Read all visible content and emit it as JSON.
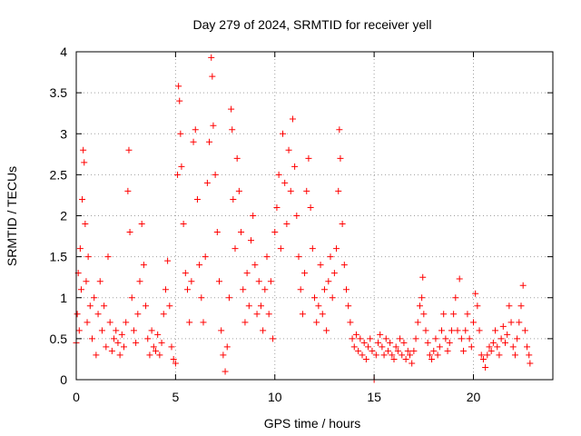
{
  "chart_data": {
    "type": "scatter",
    "title": "Day 279 of 2024, SRMTID for receiver yell",
    "xlabel": "GPS time / hours",
    "ylabel": "SRMTID / TECUs",
    "xlim": [
      0,
      24
    ],
    "ylim": [
      0,
      4
    ],
    "x_ticks": [
      0,
      5,
      10,
      15,
      20
    ],
    "x_tick_labels": [
      "0",
      "5",
      "10",
      "15",
      "20"
    ],
    "y_ticks": [
      0,
      0.5,
      1,
      1.5,
      2,
      2.5,
      3,
      3.5,
      4
    ],
    "y_tick_labels": [
      "0",
      "0.5",
      "1",
      "1.5",
      "2",
      "2.5",
      "3",
      "3.5",
      "4"
    ],
    "grid": true,
    "marker": "+",
    "series": [
      {
        "name": "SRMTID",
        "color": "#ff0000",
        "points": [
          [
            0.0,
            0.45
          ],
          [
            0.05,
            0.8
          ],
          [
            0.1,
            1.3
          ],
          [
            0.15,
            0.6
          ],
          [
            0.2,
            1.6
          ],
          [
            0.25,
            1.1
          ],
          [
            0.3,
            2.2
          ],
          [
            0.35,
            2.8
          ],
          [
            0.4,
            2.65
          ],
          [
            0.45,
            1.9
          ],
          [
            0.5,
            1.2
          ],
          [
            0.55,
            0.7
          ],
          [
            0.6,
            1.5
          ],
          [
            0.7,
            0.9
          ],
          [
            0.8,
            0.5
          ],
          [
            0.9,
            1.0
          ],
          [
            1.0,
            0.3
          ],
          [
            1.1,
            0.8
          ],
          [
            1.2,
            1.2
          ],
          [
            1.3,
            0.6
          ],
          [
            1.4,
            0.9
          ],
          [
            1.5,
            0.4
          ],
          [
            1.6,
            1.5
          ],
          [
            1.7,
            0.7
          ],
          [
            1.8,
            0.35
          ],
          [
            1.9,
            0.5
          ],
          [
            2.0,
            0.6
          ],
          [
            2.1,
            0.45
          ],
          [
            2.2,
            0.3
          ],
          [
            2.3,
            0.55
          ],
          [
            2.4,
            0.4
          ],
          [
            2.5,
            0.7
          ],
          [
            2.6,
            2.3
          ],
          [
            2.65,
            2.8
          ],
          [
            2.7,
            1.8
          ],
          [
            2.8,
            1.0
          ],
          [
            2.9,
            0.6
          ],
          [
            3.0,
            0.45
          ],
          [
            3.1,
            0.8
          ],
          [
            3.2,
            1.2
          ],
          [
            3.3,
            1.9
          ],
          [
            3.4,
            1.4
          ],
          [
            3.5,
            0.9
          ],
          [
            3.6,
            0.5
          ],
          [
            3.7,
            0.3
          ],
          [
            3.8,
            0.6
          ],
          [
            3.9,
            0.4
          ],
          [
            4.0,
            0.35
          ],
          [
            4.1,
            0.55
          ],
          [
            4.2,
            0.3
          ],
          [
            4.3,
            0.45
          ],
          [
            4.4,
            0.8
          ],
          [
            4.5,
            1.1
          ],
          [
            4.6,
            1.45
          ],
          [
            4.7,
            0.9
          ],
          [
            4.8,
            0.4
          ],
          [
            4.9,
            0.25
          ],
          [
            5.0,
            0.2
          ],
          [
            5.1,
            2.5
          ],
          [
            5.15,
            3.58
          ],
          [
            5.2,
            3.4
          ],
          [
            5.25,
            3.0
          ],
          [
            5.3,
            2.6
          ],
          [
            5.4,
            1.9
          ],
          [
            5.5,
            1.3
          ],
          [
            5.6,
            1.1
          ],
          [
            5.7,
            0.7
          ],
          [
            5.8,
            1.2
          ],
          [
            5.9,
            2.9
          ],
          [
            6.0,
            3.05
          ],
          [
            6.1,
            2.2
          ],
          [
            6.2,
            1.4
          ],
          [
            6.3,
            1.0
          ],
          [
            6.4,
            0.7
          ],
          [
            6.5,
            1.5
          ],
          [
            6.6,
            2.4
          ],
          [
            6.7,
            2.9
          ],
          [
            6.8,
            3.93
          ],
          [
            6.85,
            3.7
          ],
          [
            6.9,
            3.1
          ],
          [
            7.0,
            2.5
          ],
          [
            7.1,
            1.8
          ],
          [
            7.2,
            1.2
          ],
          [
            7.3,
            0.6
          ],
          [
            7.4,
            0.3
          ],
          [
            7.5,
            0.1
          ],
          [
            7.6,
            0.4
          ],
          [
            7.7,
            1.0
          ],
          [
            7.8,
            3.3
          ],
          [
            7.85,
            3.05
          ],
          [
            7.9,
            2.2
          ],
          [
            8.0,
            1.6
          ],
          [
            8.1,
            2.7
          ],
          [
            8.2,
            2.3
          ],
          [
            8.3,
            1.8
          ],
          [
            8.4,
            1.1
          ],
          [
            8.5,
            0.7
          ],
          [
            8.6,
            1.3
          ],
          [
            8.7,
            0.9
          ],
          [
            8.8,
            1.7
          ],
          [
            8.9,
            2.0
          ],
          [
            9.0,
            1.4
          ],
          [
            9.1,
            0.8
          ],
          [
            9.2,
            1.2
          ],
          [
            9.3,
            0.9
          ],
          [
            9.4,
            0.6
          ],
          [
            9.5,
            1.1
          ],
          [
            9.6,
            1.5
          ],
          [
            9.7,
            0.8
          ],
          [
            9.8,
            1.2
          ],
          [
            9.9,
            0.5
          ],
          [
            10.0,
            1.8
          ],
          [
            10.1,
            2.1
          ],
          [
            10.2,
            2.5
          ],
          [
            10.3,
            1.6
          ],
          [
            10.4,
            3.0
          ],
          [
            10.5,
            2.4
          ],
          [
            10.6,
            1.9
          ],
          [
            10.7,
            2.8
          ],
          [
            10.8,
            2.3
          ],
          [
            10.9,
            3.18
          ],
          [
            11.0,
            2.6
          ],
          [
            11.1,
            2.0
          ],
          [
            11.2,
            1.5
          ],
          [
            11.3,
            1.1
          ],
          [
            11.4,
            0.8
          ],
          [
            11.5,
            1.3
          ],
          [
            11.6,
            2.3
          ],
          [
            11.7,
            2.7
          ],
          [
            11.8,
            2.1
          ],
          [
            11.9,
            1.6
          ],
          [
            12.0,
            1.0
          ],
          [
            12.1,
            0.7
          ],
          [
            12.2,
            0.9
          ],
          [
            12.3,
            1.4
          ],
          [
            12.4,
            0.8
          ],
          [
            12.5,
            1.1
          ],
          [
            12.6,
            0.6
          ],
          [
            12.7,
            1.2
          ],
          [
            12.8,
            1.5
          ],
          [
            12.9,
            1.0
          ],
          [
            13.0,
            1.3
          ],
          [
            13.1,
            1.6
          ],
          [
            13.2,
            2.3
          ],
          [
            13.25,
            3.05
          ],
          [
            13.3,
            2.7
          ],
          [
            13.4,
            1.9
          ],
          [
            13.5,
            1.4
          ],
          [
            13.6,
            1.1
          ],
          [
            13.7,
            0.9
          ],
          [
            13.8,
            0.7
          ],
          [
            13.9,
            0.5
          ],
          [
            14.0,
            0.4
          ],
          [
            14.1,
            0.55
          ],
          [
            14.2,
            0.35
          ],
          [
            14.3,
            0.5
          ],
          [
            14.4,
            0.3
          ],
          [
            14.5,
            0.45
          ],
          [
            14.6,
            0.25
          ],
          [
            14.7,
            0.4
          ],
          [
            14.8,
            0.5
          ],
          [
            14.9,
            0.35
          ],
          [
            15.0,
            0.0
          ],
          [
            15.1,
            0.3
          ],
          [
            15.2,
            0.45
          ],
          [
            15.3,
            0.55
          ],
          [
            15.4,
            0.4
          ],
          [
            15.5,
            0.3
          ],
          [
            15.6,
            0.5
          ],
          [
            15.7,
            0.35
          ],
          [
            15.8,
            0.45
          ],
          [
            15.9,
            0.3
          ],
          [
            16.0,
            0.25
          ],
          [
            16.1,
            0.4
          ],
          [
            16.2,
            0.35
          ],
          [
            16.3,
            0.5
          ],
          [
            16.4,
            0.3
          ],
          [
            16.5,
            0.45
          ],
          [
            16.6,
            0.25
          ],
          [
            16.7,
            0.35
          ],
          [
            16.8,
            0.3
          ],
          [
            16.9,
            0.2
          ],
          [
            17.0,
            0.35
          ],
          [
            17.1,
            0.5
          ],
          [
            17.2,
            0.7
          ],
          [
            17.3,
            0.9
          ],
          [
            17.4,
            1.0
          ],
          [
            17.45,
            1.25
          ],
          [
            17.5,
            0.8
          ],
          [
            17.6,
            0.6
          ],
          [
            17.7,
            0.45
          ],
          [
            17.8,
            0.3
          ],
          [
            17.9,
            0.25
          ],
          [
            18.0,
            0.35
          ],
          [
            18.1,
            0.5
          ],
          [
            18.2,
            0.3
          ],
          [
            18.3,
            0.4
          ],
          [
            18.4,
            0.6
          ],
          [
            18.5,
            0.8
          ],
          [
            18.6,
            0.5
          ],
          [
            18.7,
            0.35
          ],
          [
            18.8,
            0.45
          ],
          [
            18.9,
            0.6
          ],
          [
            19.0,
            0.8
          ],
          [
            19.1,
            1.0
          ],
          [
            19.2,
            0.6
          ],
          [
            19.3,
            1.23
          ],
          [
            19.4,
            0.5
          ],
          [
            19.5,
            0.35
          ],
          [
            19.6,
            0.6
          ],
          [
            19.7,
            0.8
          ],
          [
            19.8,
            0.5
          ],
          [
            19.9,
            0.4
          ],
          [
            20.0,
            0.7
          ],
          [
            20.1,
            1.05
          ],
          [
            20.2,
            0.9
          ],
          [
            20.3,
            0.6
          ],
          [
            20.4,
            0.3
          ],
          [
            20.5,
            0.25
          ],
          [
            20.6,
            0.15
          ],
          [
            20.7,
            0.3
          ],
          [
            20.8,
            0.4
          ],
          [
            20.9,
            0.35
          ],
          [
            21.0,
            0.45
          ],
          [
            21.1,
            0.6
          ],
          [
            21.2,
            0.4
          ],
          [
            21.3,
            0.3
          ],
          [
            21.4,
            0.5
          ],
          [
            21.5,
            0.65
          ],
          [
            21.6,
            0.45
          ],
          [
            21.7,
            0.55
          ],
          [
            21.8,
            0.9
          ],
          [
            21.9,
            0.7
          ],
          [
            22.0,
            0.4
          ],
          [
            22.1,
            0.3
          ],
          [
            22.2,
            0.5
          ],
          [
            22.3,
            0.7
          ],
          [
            22.4,
            0.9
          ],
          [
            22.5,
            1.15
          ],
          [
            22.6,
            0.6
          ],
          [
            22.7,
            0.4
          ],
          [
            22.8,
            0.3
          ],
          [
            22.85,
            0.2
          ]
        ]
      }
    ]
  }
}
